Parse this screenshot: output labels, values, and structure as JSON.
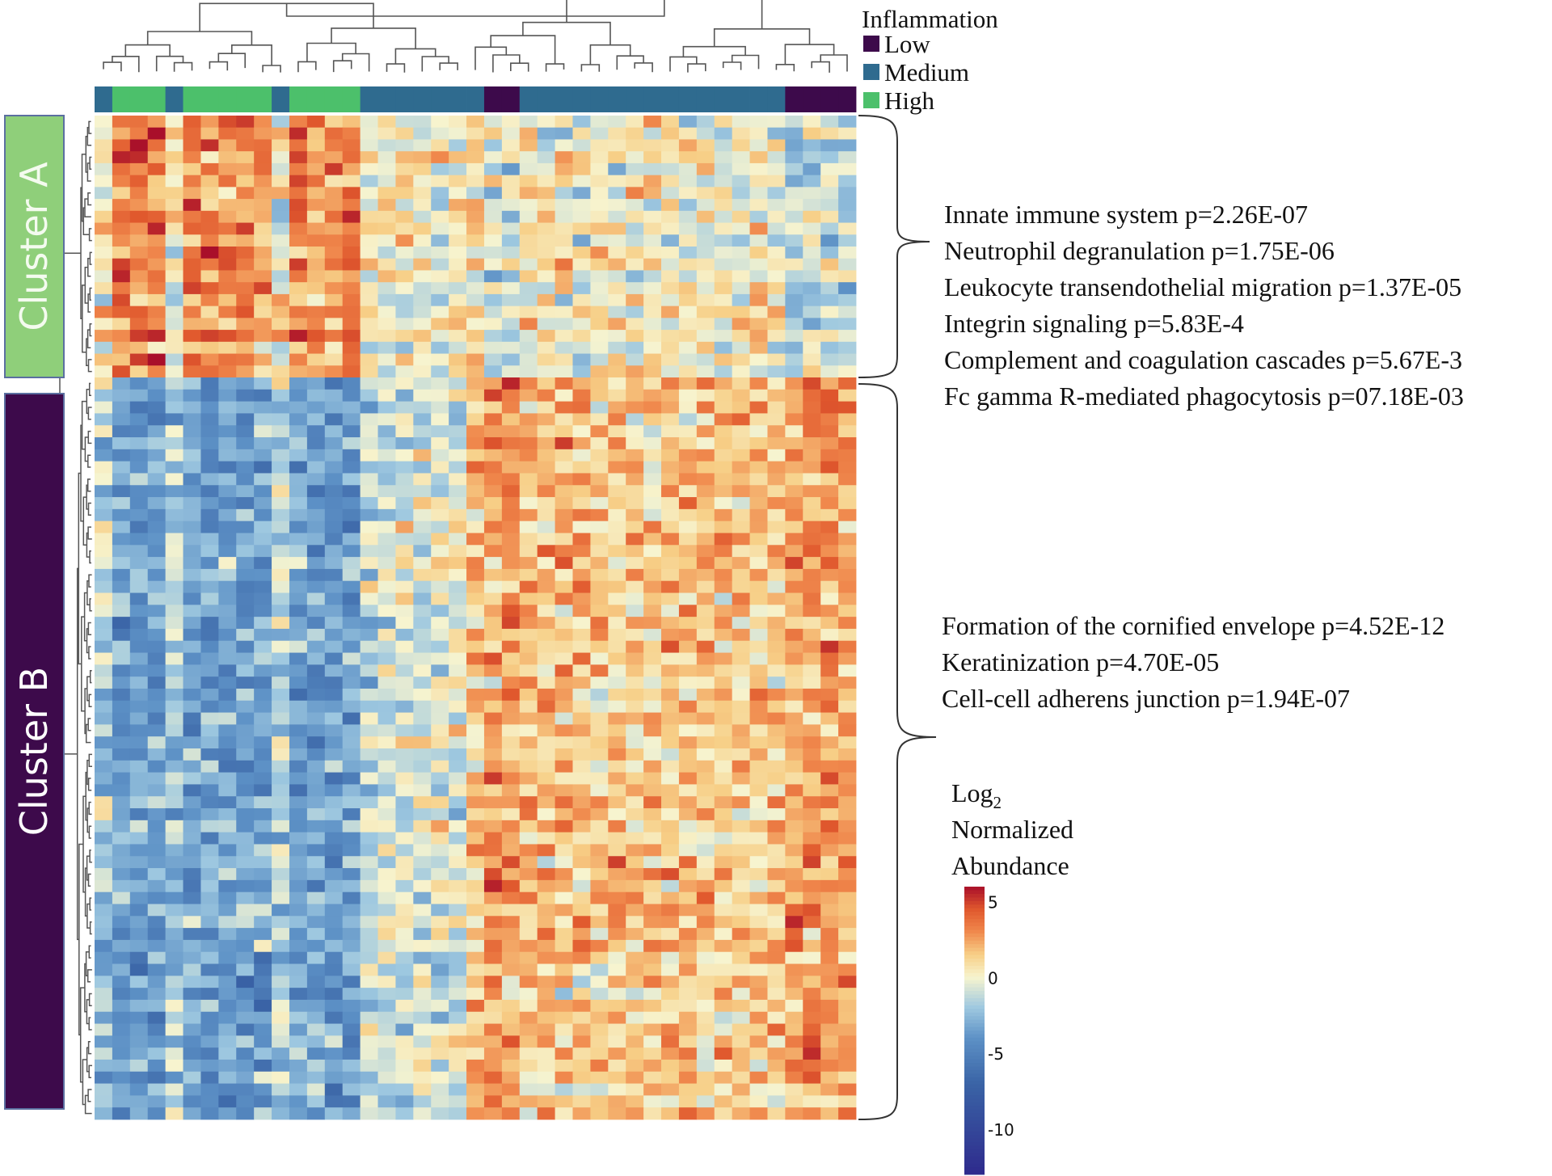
{
  "chart_data": {
    "type": "heatmap",
    "value_label": "Log2 Normalized Abundance",
    "color_scale": {
      "min": -13,
      "max": 6,
      "ticks": [
        "5",
        "0",
        "-5",
        "-10"
      ],
      "tick_values": [
        5,
        0,
        -5,
        -10
      ],
      "title_lines": [
        "Log",
        "Normalized",
        "Abundance"
      ],
      "title_subscript": "2",
      "stops": [
        {
          "value": -13,
          "color": "#2e2a8c"
        },
        {
          "value": -7,
          "color": "#3a64a6"
        },
        {
          "value": -4,
          "color": "#5d91c6"
        },
        {
          "value": -2,
          "color": "#9ec8e0"
        },
        {
          "value": 0,
          "color": "#f7f4cf"
        },
        {
          "value": 1.5,
          "color": "#f7cf87"
        },
        {
          "value": 3,
          "color": "#f0894d"
        },
        {
          "value": 4.5,
          "color": "#e0582d"
        },
        {
          "value": 6,
          "color": "#a90f2a"
        }
      ]
    },
    "inflammation": {
      "title": "Inflammation",
      "legend": [
        {
          "label": "Low",
          "color": "#3d0a4b"
        },
        {
          "label": "Medium",
          "color": "#2f6b8f"
        },
        {
          "label": "High",
          "color": "#4cc06b"
        }
      ],
      "sample_groups": [
        {
          "level": "Medium",
          "n": 1
        },
        {
          "level": "High",
          "n": 3
        },
        {
          "level": "Medium",
          "n": 1
        },
        {
          "level": "High",
          "n": 5
        },
        {
          "level": "Medium",
          "n": 1
        },
        {
          "level": "High",
          "n": 4
        },
        {
          "level": "Medium",
          "n": 7
        },
        {
          "level": "Low",
          "n": 2
        },
        {
          "level": "Medium",
          "n": 15
        },
        {
          "level": "Low",
          "n": 4
        }
      ]
    },
    "n_samples": 43,
    "row_clusters": [
      {
        "name": "Cluster A",
        "n_rows": 22,
        "color": "#8fcf7a",
        "pattern": "higher abundance in high-inflammation samples",
        "pathways": [
          "Innate immune system p=2.26E-07",
          "Neutrophil degranulation p=1.75E-06",
          "Leukocyte transendothelial migration p=1.37E-05",
          "Integrin signaling p=5.83E-4",
          "Complement and coagulation cascades p=5.67E-3",
          "Fc gamma R-mediated phagocytosis p=07.18E-03"
        ]
      },
      {
        "name": "Cluster B",
        "n_rows": 62,
        "color": "#3d0a4b",
        "pattern": "lower abundance in high-inflammation samples",
        "pathways": [
          "Formation of the cornified envelope p=4.52E-12",
          "Keratinization p=4.70E-05",
          "Cell-cell adherens junction p=1.94E-07"
        ]
      }
    ],
    "mean_log2_by_block": {
      "cluster_A": {
        "High": 3.0,
        "Medium": 0.3,
        "Low": -1.0
      },
      "cluster_B": {
        "High": -3.5,
        "Medium": 1.5,
        "Low": 2.5
      }
    }
  }
}
